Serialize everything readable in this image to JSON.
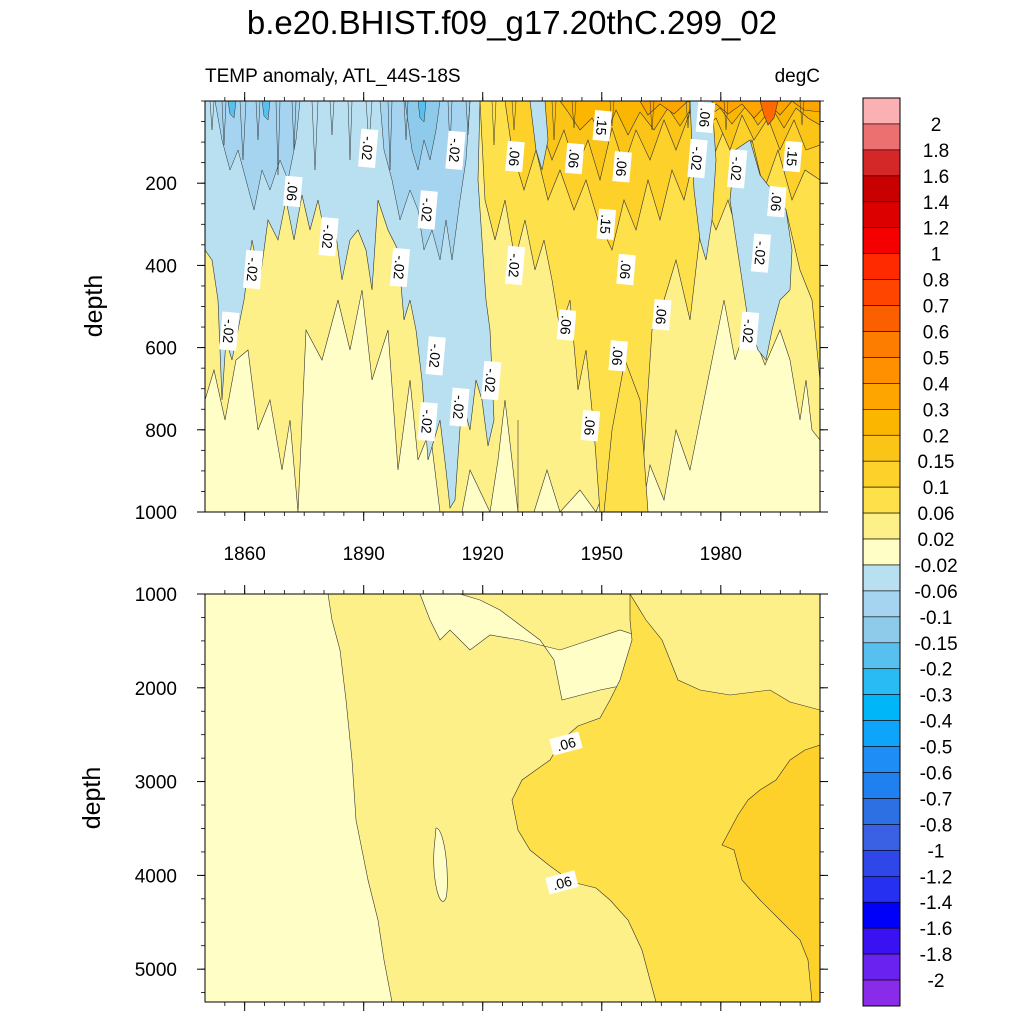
{
  "title": "b.e20.BHIST.f09_g17.20thC.299_02",
  "chart_data": [
    {
      "type": "contour",
      "panel": "upper",
      "left_string": "TEMP anomaly, ATL_44S-18S",
      "right_string": "degC",
      "ylabel": "depth",
      "x_range": [
        1850,
        2005
      ],
      "y_range": [
        0,
        1000
      ],
      "y_reversed": true,
      "x_ticks": [
        "1860",
        "1890",
        "1920",
        "1950",
        "1980"
      ],
      "x_tick_values": [
        1860,
        1890,
        1920,
        1950,
        1980
      ],
      "y_ticks": [
        "200",
        "400",
        "600",
        "800",
        "1000"
      ],
      "y_tick_values": [
        200,
        400,
        600,
        800,
        1000
      ],
      "contour_labels": [
        {
          "text": "-.02",
          "year": 1891,
          "depth": 115
        },
        {
          "text": ".06",
          "year": 1872,
          "depth": 220
        },
        {
          "text": "-.02",
          "year": 1881,
          "depth": 330
        },
        {
          "text": "-.02",
          "year": 1862,
          "depth": 410
        },
        {
          "text": "-.02",
          "year": 1856,
          "depth": 560
        },
        {
          "text": "-.02",
          "year": 1899,
          "depth": 405
        },
        {
          "text": "-.02",
          "year": 1906,
          "depth": 265
        },
        {
          "text": "-.02",
          "year": 1913,
          "depth": 120
        },
        {
          "text": ".06",
          "year": 1928,
          "depth": 135
        },
        {
          "text": "-.02",
          "year": 1928,
          "depth": 400
        },
        {
          "text": "-.02",
          "year": 1908,
          "depth": 620
        },
        {
          "text": "-.02",
          "year": 1922,
          "depth": 680
        },
        {
          "text": "-.02",
          "year": 1914,
          "depth": 745
        },
        {
          "text": "-.02",
          "year": 1906,
          "depth": 780
        },
        {
          "text": ".06",
          "year": 1943,
          "depth": 140
        },
        {
          "text": ".06",
          "year": 1955,
          "depth": 160
        },
        {
          "text": ".15",
          "year": 1950,
          "depth": 60
        },
        {
          "text": ".15",
          "year": 1951,
          "depth": 300
        },
        {
          "text": ".06",
          "year": 1956,
          "depth": 410
        },
        {
          "text": ".06",
          "year": 1941,
          "depth": 545
        },
        {
          "text": ".06",
          "year": 1954,
          "depth": 620
        },
        {
          "text": ".06",
          "year": 1947,
          "depth": 790
        },
        {
          "text": ".06",
          "year": 1965,
          "depth": 520
        },
        {
          "text": ".06",
          "year": 1976,
          "depth": 40
        },
        {
          "text": "-.02",
          "year": 1974,
          "depth": 140
        },
        {
          "text": "-.02",
          "year": 1984,
          "depth": 165
        },
        {
          "text": ".15",
          "year": 1998,
          "depth": 135
        },
        {
          "text": ".06",
          "year": 1994,
          "depth": 245
        },
        {
          "text": "-.02",
          "year": 1990,
          "depth": 370
        },
        {
          "text": "-.02",
          "year": 1987,
          "depth": 560
        }
      ]
    },
    {
      "type": "contour",
      "panel": "lower",
      "ylabel": "depth",
      "x_range": [
        1850,
        2005
      ],
      "y_range": [
        1000,
        5350
      ],
      "y_reversed": true,
      "y_ticks": [
        "1000",
        "2000",
        "3000",
        "4000",
        "5000"
      ],
      "y_tick_values": [
        1000,
        2000,
        3000,
        4000,
        5000
      ],
      "contour_labels": [
        {
          "text": ".06",
          "year": 1941,
          "depth": 2600
        },
        {
          "text": ".06",
          "year": 1940,
          "depth": 4080
        }
      ]
    },
    {
      "type": "colorbar",
      "orientation": "vertical",
      "levels": [
        "2",
        "1.8",
        "1.6",
        "1.4",
        "1.2",
        "1",
        "0.8",
        "0.7",
        "0.6",
        "0.5",
        "0.4",
        "0.3",
        "0.2",
        "0.15",
        "0.1",
        "0.06",
        "0.02",
        "-0.02",
        "-0.06",
        "-0.1",
        "-0.15",
        "-0.2",
        "-0.3",
        "-0.4",
        "-0.5",
        "-0.6",
        "-0.7",
        "-0.8",
        "-1",
        "-1.2",
        "-1.4",
        "-1.6",
        "-1.8",
        "-2"
      ],
      "colors": [
        "#fbb0b4",
        "#ec7070",
        "#d42828",
        "#c80000",
        "#dc0000",
        "#f40000",
        "#ff2a00",
        "#ff4500",
        "#fb6000",
        "#fc7d00",
        "#ff9100",
        "#ffa500",
        "#fbb700",
        "#fbc518",
        "#fed02a",
        "#fee04a",
        "#fef088",
        "#fffec6",
        "#b8e0f0",
        "#a4d4ef",
        "#8ecbea",
        "#58c0ee",
        "#28bbf4",
        "#00b6f8",
        "#0ea4f9",
        "#1e8ef6",
        "#2080f0",
        "#2c70e4",
        "#3a60e4",
        "#2f46e8",
        "#2630f0",
        "#0000fa",
        "#3a12f2",
        "#6a22f0",
        "#8a2bea"
      ]
    }
  ]
}
